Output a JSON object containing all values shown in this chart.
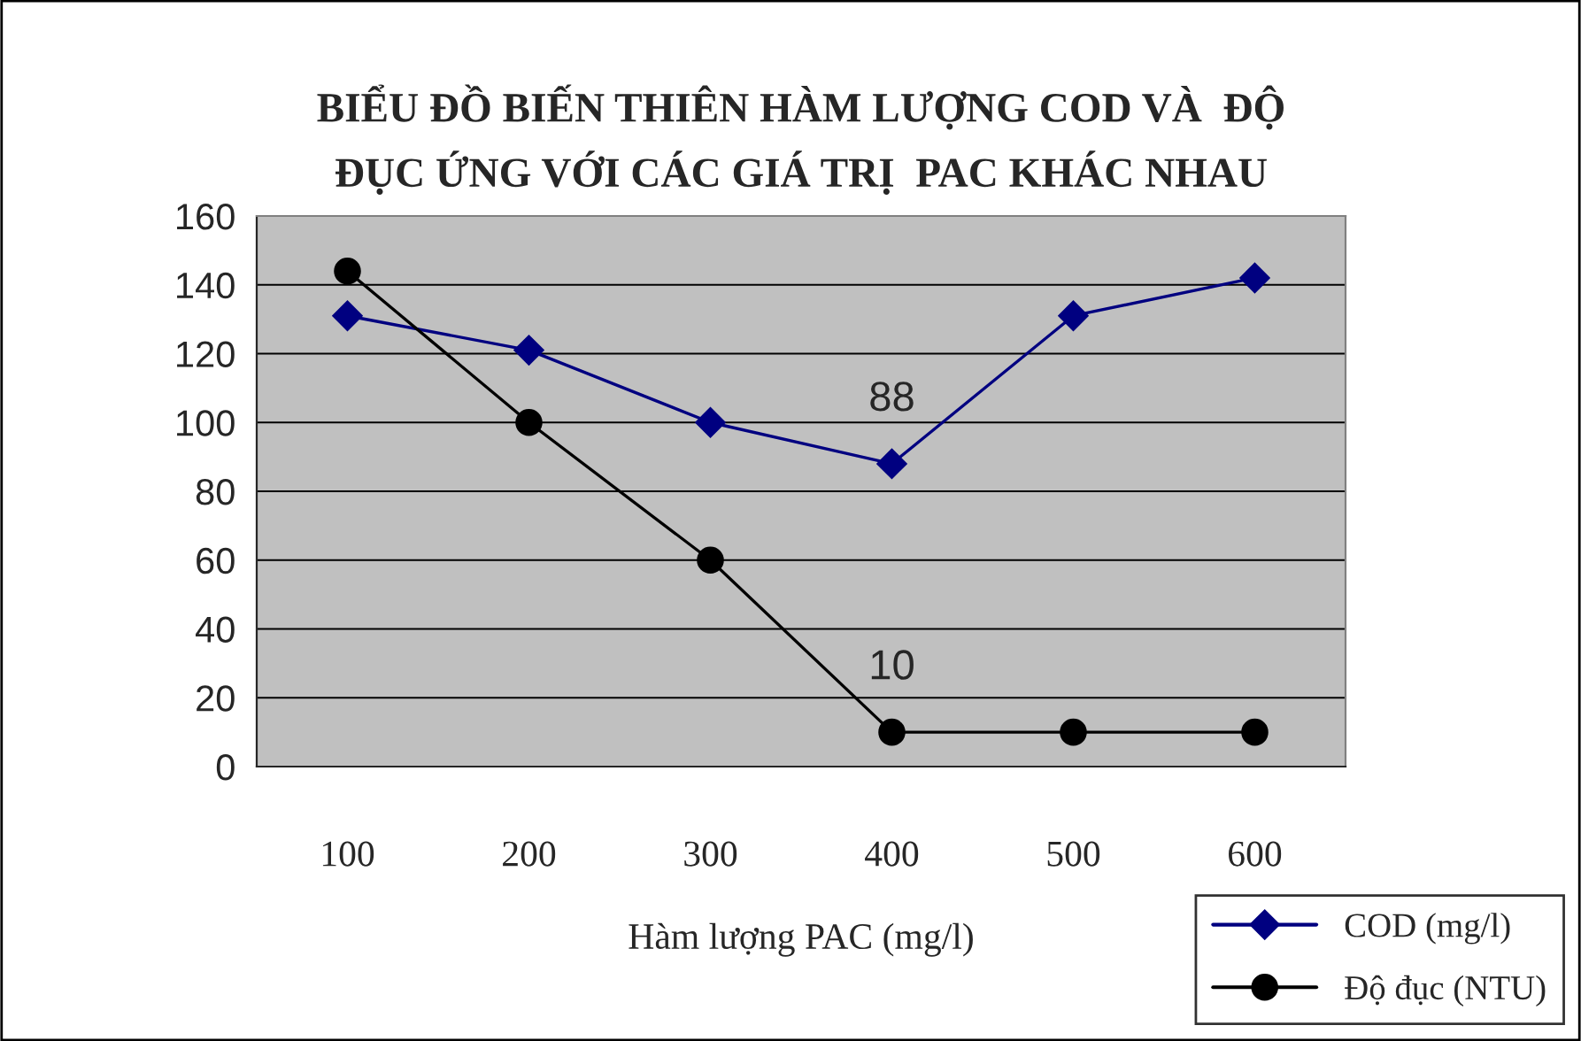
{
  "chart_data": {
    "type": "line",
    "title": "BIỂU ĐỒ BIẾN THIÊN HÀM LƯỢNG COD VÀ  ĐỘ\nĐỤC ỨNG VỚI CÁC GIÁ TRỊ  PAC KHÁC NHAU",
    "xlabel": "Hàm lượng PAC (mg/l)",
    "categories": [
      "100",
      "200",
      "300",
      "400",
      "500",
      "600"
    ],
    "series": [
      {
        "name": "COD (mg/l)",
        "color": "#000080",
        "marker": "diamond",
        "values": [
          131,
          121,
          100,
          88,
          131,
          142
        ]
      },
      {
        "name": "Độ đục (NTU)",
        "color": "#000000",
        "marker": "circle",
        "values": [
          144,
          100,
          60,
          10,
          10,
          10
        ]
      }
    ],
    "annotations": [
      {
        "text": "88",
        "x": "400",
        "y": 88
      },
      {
        "text": "10",
        "x": "400",
        "y": 10
      }
    ],
    "ylim": [
      0,
      160
    ],
    "yticks": [
      0,
      20,
      40,
      60,
      80,
      100,
      120,
      140,
      160
    ],
    "grid": "y",
    "legend": "bottom right",
    "line_style": "solid"
  }
}
